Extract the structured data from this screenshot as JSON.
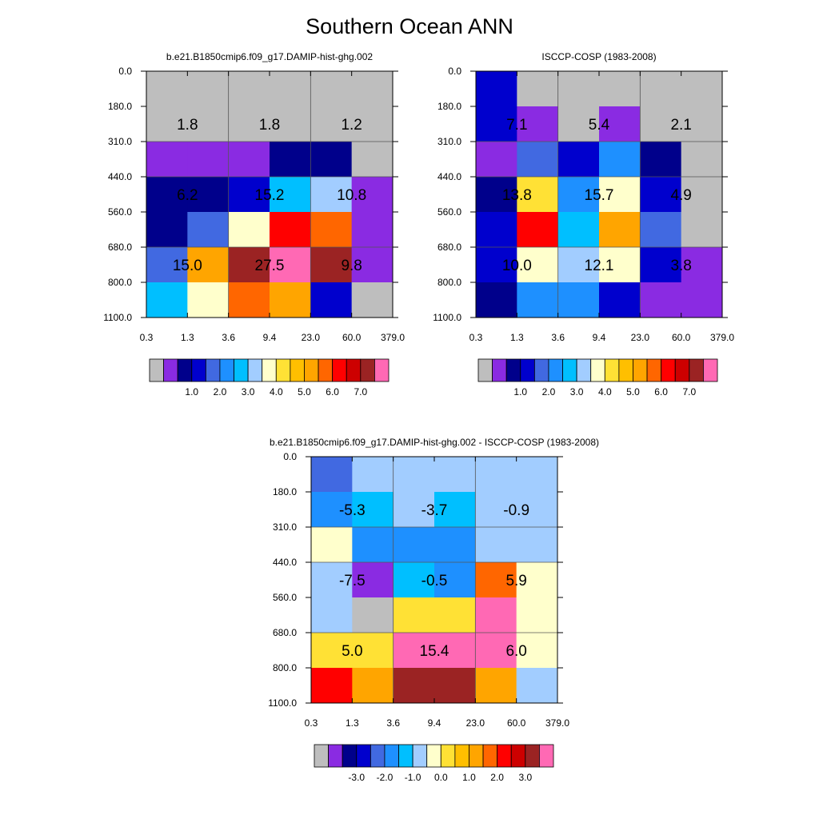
{
  "title": "Southern Ocean ANN",
  "x_ticks": [
    "0.3",
    "1.3",
    "3.6",
    "9.4",
    "23.0",
    "60.0",
    "379.0"
  ],
  "y_ticks": [
    "0.0",
    "180.0",
    "310.0",
    "440.0",
    "560.0",
    "680.0",
    "800.0",
    "1100.0"
  ],
  "abs_colorbar": {
    "colors": [
      "#bebebe",
      "#8a2be2",
      "#00008b",
      "#0000cd",
      "#4169e1",
      "#1e90ff",
      "#00bfff",
      "#a2cdff",
      "#ffffcc",
      "#ffe135",
      "#ffbf00",
      "#ffa500",
      "#ff6600",
      "#ff0000",
      "#cd0000",
      "#9b2323",
      "#ff69b4"
    ],
    "labels": [
      "1.0",
      "2.0",
      "3.0",
      "4.0",
      "5.0",
      "6.0",
      "7.0"
    ]
  },
  "diff_colorbar": {
    "colors": [
      "#bebebe",
      "#8a2be2",
      "#00008b",
      "#0000cd",
      "#4169e1",
      "#1e90ff",
      "#00bfff",
      "#a2cdff",
      "#ffffcc",
      "#ffe135",
      "#ffbf00",
      "#ffa500",
      "#ff6600",
      "#ff0000",
      "#cd0000",
      "#9b2323",
      "#ff69b4"
    ],
    "labels": [
      "-3.0",
      "-2.0",
      "-1.0",
      "0.0",
      "1.0",
      "2.0",
      "3.0"
    ]
  },
  "chart_data": [
    {
      "type": "heatmap",
      "title": "b.e21.B1850cmip6.f09_g17.DAMIP-hist-ghg.002",
      "cells": [
        [
          "#bebebe",
          "#bebebe",
          "#bebebe",
          "#bebebe",
          "#bebebe",
          "#bebebe"
        ],
        [
          "#bebebe",
          "#bebebe",
          "#bebebe",
          "#bebebe",
          "#bebebe",
          "#bebebe"
        ],
        [
          "#8a2be2",
          "#8a2be2",
          "#8a2be2",
          "#00008b",
          "#00008b",
          "#bebebe"
        ],
        [
          "#00008b",
          "#00008b",
          "#0000cd",
          "#00bfff",
          "#a2cdff",
          "#8a2be2"
        ],
        [
          "#00008b",
          "#4169e1",
          "#ffffcc",
          "#ff0000",
          "#ff6600",
          "#8a2be2"
        ],
        [
          "#4169e1",
          "#ffa500",
          "#9b2323",
          "#ff69b4",
          "#9b2323",
          "#8a2be2"
        ],
        [
          "#00bfff",
          "#ffffcc",
          "#ff6600",
          "#ffa500",
          "#0000cd",
          "#bebebe"
        ]
      ],
      "annotations": [
        [
          "1.8",
          "1.8",
          "1.2"
        ],
        [
          "6.2",
          "15.2",
          "10.8"
        ],
        [
          "15.0",
          "27.5",
          "9.8"
        ]
      ]
    },
    {
      "type": "heatmap",
      "title": "ISCCP-COSP (1983-2008)",
      "cells": [
        [
          "#0000cd",
          "#bebebe",
          "#bebebe",
          "#bebebe",
          "#bebebe",
          "#bebebe"
        ],
        [
          "#0000cd",
          "#8a2be2",
          "#bebebe",
          "#8a2be2",
          "#bebebe",
          "#bebebe"
        ],
        [
          "#8a2be2",
          "#4169e1",
          "#0000cd",
          "#1e90ff",
          "#00008b",
          "#bebebe"
        ],
        [
          "#00008b",
          "#ffe135",
          "#1e90ff",
          "#ffffcc",
          "#0000cd",
          "#bebebe"
        ],
        [
          "#0000cd",
          "#ff0000",
          "#00bfff",
          "#ffa500",
          "#4169e1",
          "#bebebe"
        ],
        [
          "#0000cd",
          "#ffffcc",
          "#a2cdff",
          "#ffffcc",
          "#0000cd",
          "#8a2be2"
        ],
        [
          "#00008b",
          "#1e90ff",
          "#1e90ff",
          "#0000cd",
          "#8a2be2",
          "#8a2be2"
        ]
      ],
      "annotations": [
        [
          "7.1",
          "5.4",
          "2.1"
        ],
        [
          "13.8",
          "15.7",
          "4.9"
        ],
        [
          "10.0",
          "12.1",
          "3.8"
        ]
      ]
    },
    {
      "type": "heatmap",
      "title": "b.e21.B1850cmip6.f09_g17.DAMIP-hist-ghg.002 - ISCCP-COSP (1983-2008)",
      "cells": [
        [
          "#4169e1",
          "#a2cdff",
          "#a2cdff",
          "#a2cdff",
          "#a2cdff",
          "#a2cdff"
        ],
        [
          "#1e90ff",
          "#00bfff",
          "#a2cdff",
          "#00bfff",
          "#a2cdff",
          "#a2cdff"
        ],
        [
          "#ffffcc",
          "#1e90ff",
          "#1e90ff",
          "#1e90ff",
          "#a2cdff",
          "#a2cdff"
        ],
        [
          "#a2cdff",
          "#8a2be2",
          "#00bfff",
          "#1e90ff",
          "#ff6600",
          "#ffffcc"
        ],
        [
          "#a2cdff",
          "#bebebe",
          "#ffe135",
          "#ffe135",
          "#ff69b4",
          "#ffffcc"
        ],
        [
          "#ffe135",
          "#ffe135",
          "#ff69b4",
          "#ff69b4",
          "#ff69b4",
          "#ffffcc"
        ],
        [
          "#ff0000",
          "#ffa500",
          "#9b2323",
          "#9b2323",
          "#ffa500",
          "#a2cdff"
        ]
      ],
      "annotations": [
        [
          "-5.3",
          "-3.7",
          "-0.9"
        ],
        [
          "-7.5",
          "-0.5",
          "5.9"
        ],
        [
          "5.0",
          "15.4",
          "6.0"
        ]
      ]
    }
  ]
}
